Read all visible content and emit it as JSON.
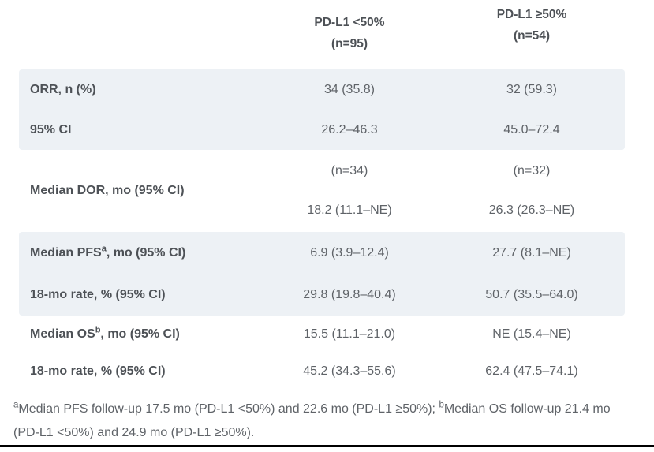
{
  "table": {
    "columns": [
      {
        "line1": "PD-L1 <50%",
        "line2": "(n=95)"
      },
      {
        "line1": "PD-L1 ≥50%",
        "line2": "(n=54)"
      }
    ],
    "sections": {
      "orr": {
        "rows": [
          {
            "label": "ORR, n (%)",
            "lt50": "34 (35.8)",
            "ge50": "32 (59.3)"
          },
          {
            "label": "95% CI",
            "lt50": "26.2–46.3",
            "ge50": "45.0–72.4"
          }
        ]
      },
      "dor": {
        "label": "Median DOR, mo (95% CI)",
        "lt50_n": "(n=34)",
        "lt50_value": "18.2 (11.1–NE)",
        "ge50_n": "(n=32)",
        "ge50_value": "26.3 (26.3–NE)"
      },
      "pfs": {
        "rows": [
          {
            "label_prefix": "Median PFS",
            "label_sup": "a",
            "label_suffix": ", mo (95% CI)",
            "lt50": "6.9 (3.9–12.4)",
            "ge50": "27.7 (8.1–NE)"
          },
          {
            "label": "18-mo rate, % (95% CI)",
            "lt50": "29.8 (19.8–40.4)",
            "ge50": "50.7 (35.5–64.0)"
          }
        ]
      },
      "os": {
        "rows": [
          {
            "label_prefix": "Median OS",
            "label_sup": "b",
            "label_suffix": ", mo (95% CI)",
            "lt50": "15.5 (11.1–21.0)",
            "ge50": "NE (15.4–NE)"
          },
          {
            "label": "18-mo rate, % (95% CI)",
            "lt50": "45.2 (34.3–55.6)",
            "ge50": "62.4 (47.5–74.1)"
          }
        ]
      }
    }
  },
  "footnote": {
    "sup_a": "a",
    "text_a": "Median PFS follow-up 17.5 mo (PD-L1 <50%) and 22.6 mo (PD-L1 ≥50%); ",
    "sup_b": "b",
    "text_b": "Median OS follow-up 21.4 mo (PD-L1 <50%) and 24.9 mo (PD-L1 ≥50%)."
  },
  "colors": {
    "shaded_row": "#edf1f5",
    "label_text": "#4d5156",
    "value_text": "#5f6368",
    "bottom_bar": "#000000"
  }
}
